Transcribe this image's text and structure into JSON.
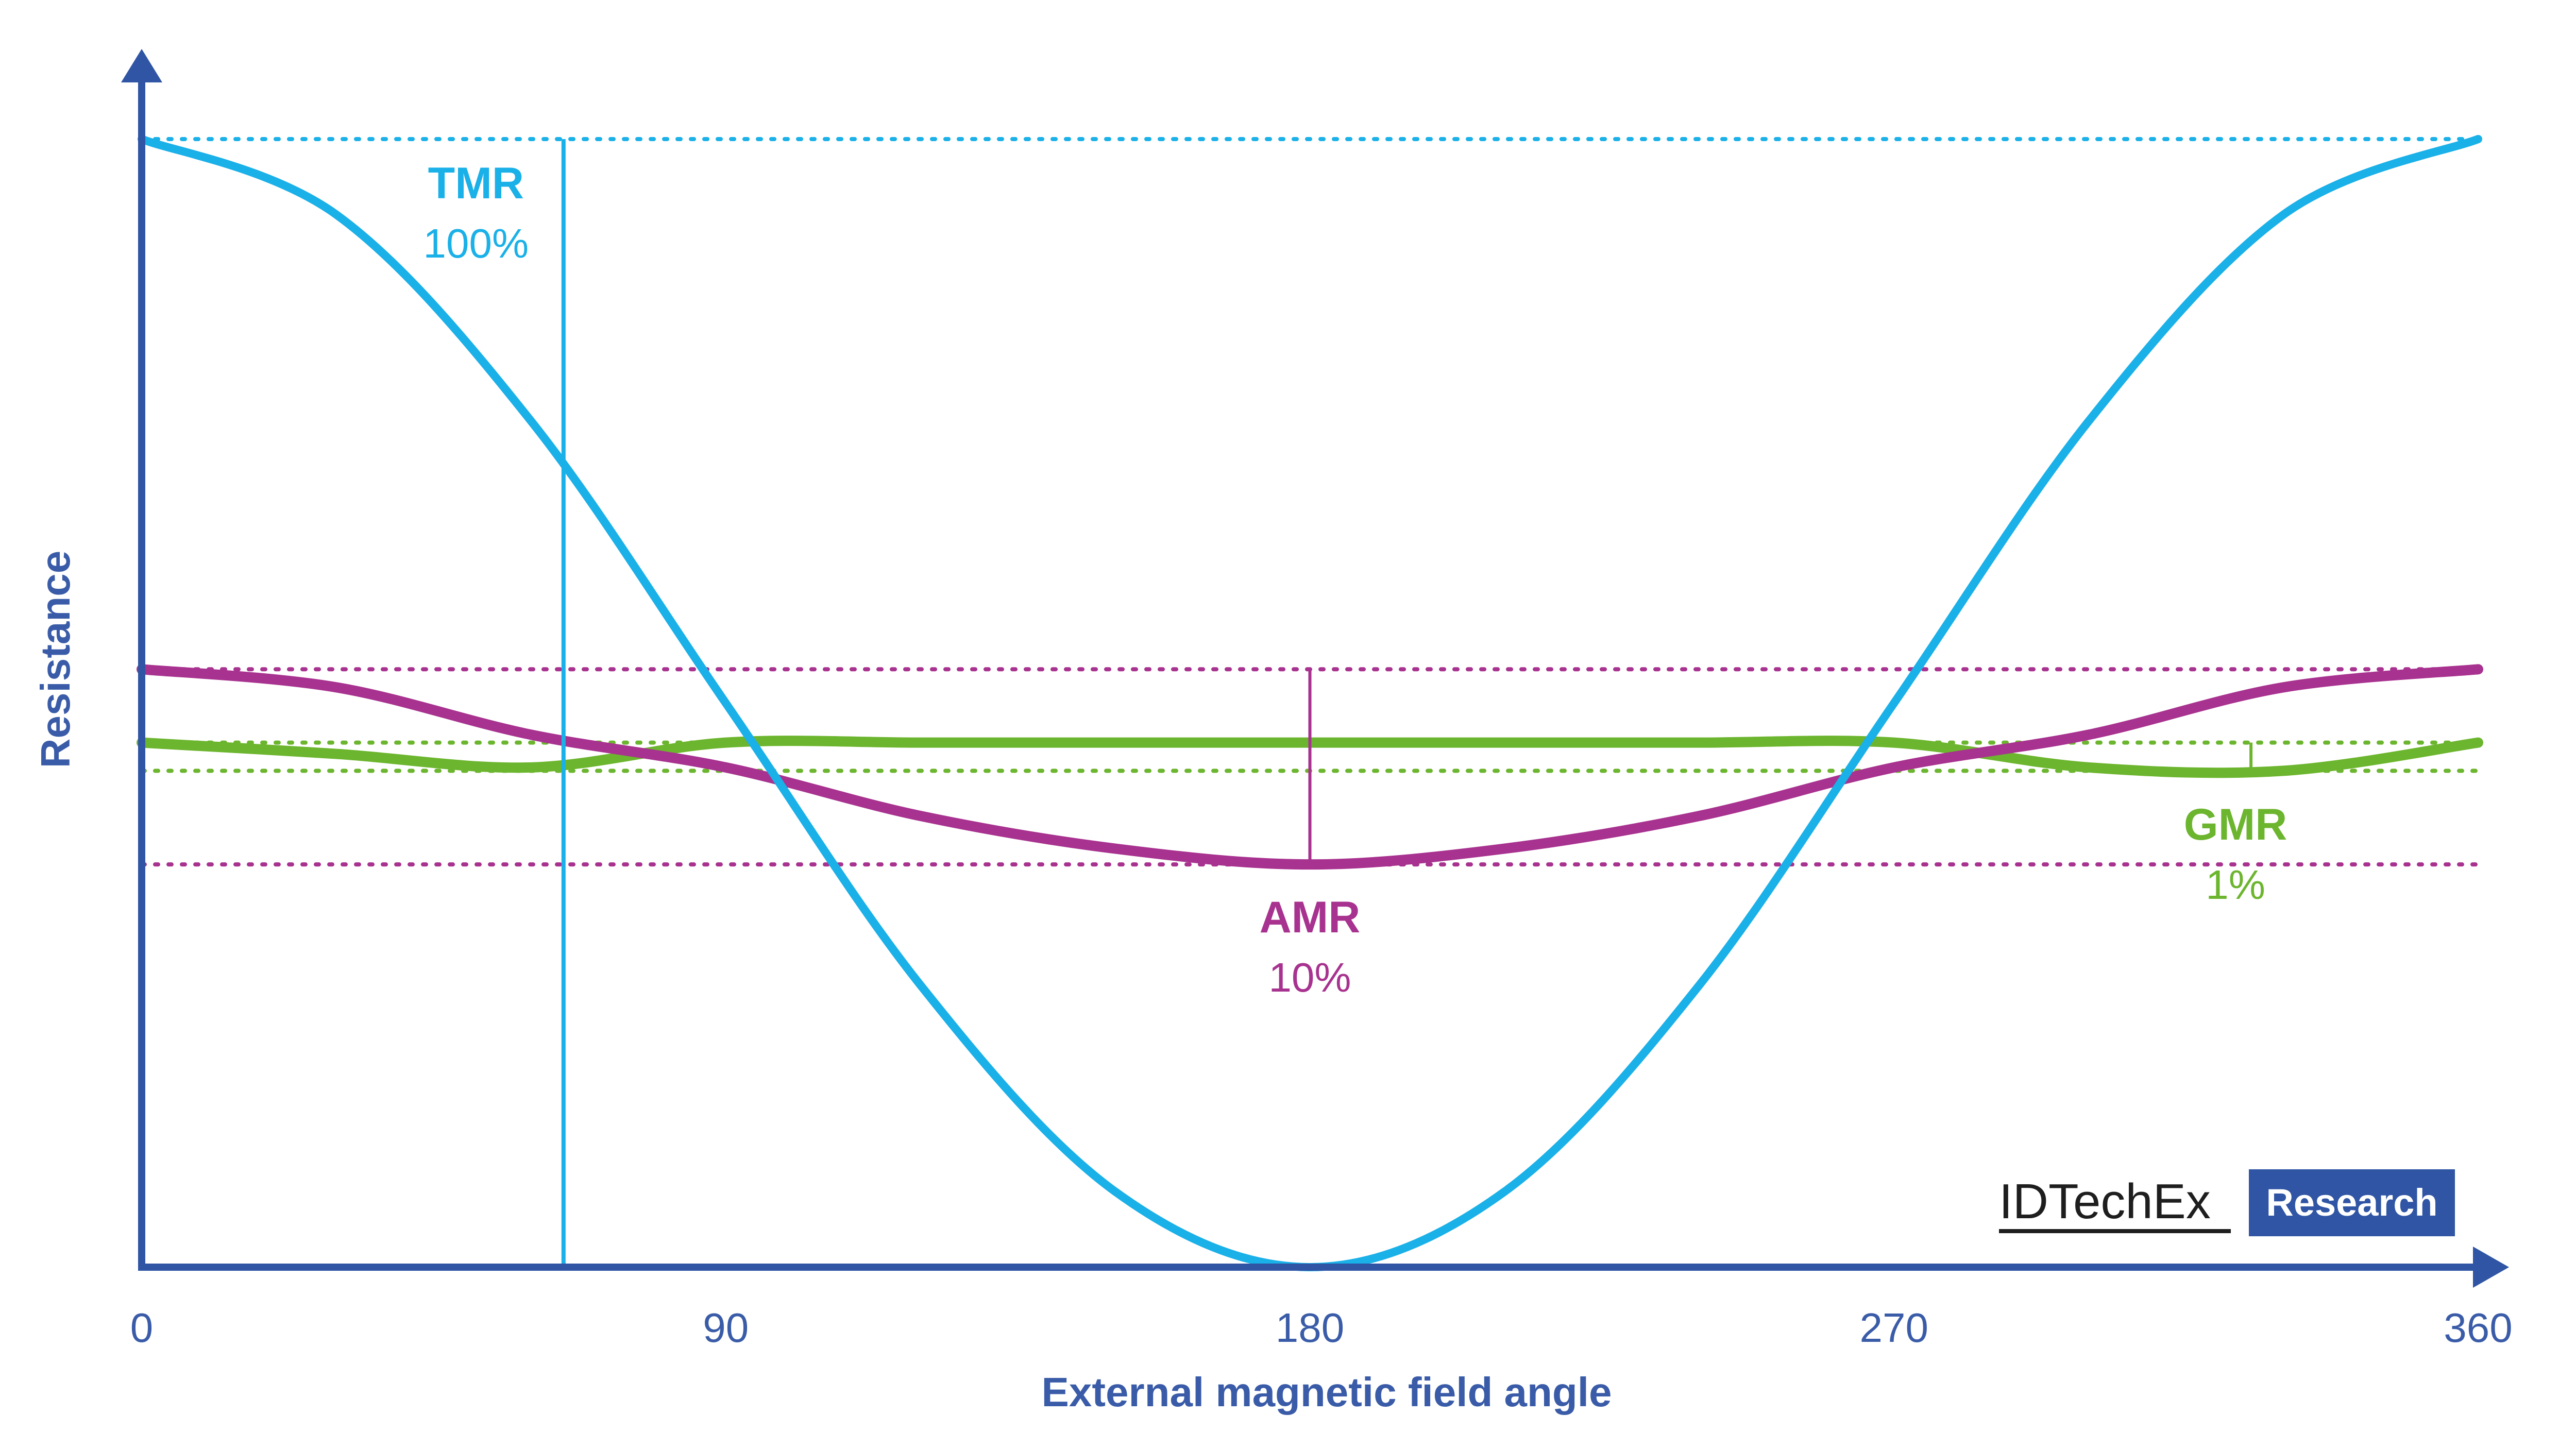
{
  "colors": {
    "axis": "#2f55a4",
    "tmr": "#1ab0e8",
    "amr": "#a8328f",
    "gmr": "#6cb52e",
    "label": "#3a5ca8"
  },
  "branding": {
    "logo_text": "IDTechEx",
    "box_text": "Research"
  },
  "chart_data": {
    "type": "line",
    "xlabel": "External magnetic field angle",
    "ylabel": "Resistance",
    "x_ticks": [
      "0",
      "90",
      "180",
      "270",
      "360"
    ],
    "xlim": [
      0,
      360
    ],
    "ylim": [
      0,
      1
    ],
    "grid": false,
    "legend": "none",
    "x": [
      0,
      30,
      60,
      90,
      120,
      150,
      180,
      210,
      240,
      270,
      300,
      330,
      360
    ],
    "series": [
      {
        "key": "tmr",
        "values": [
          1.0,
          0.933,
          0.75,
          0.5,
          0.25,
          0.067,
          0.0,
          0.067,
          0.25,
          0.5,
          0.75,
          0.933,
          1.0
        ],
        "max": 1.0,
        "min": 0.0
      },
      {
        "key": "amr",
        "values": [
          0.53,
          0.514,
          0.472,
          0.443,
          0.4,
          0.371,
          0.357,
          0.371,
          0.4,
          0.443,
          0.472,
          0.514,
          0.53
        ],
        "max": 0.53,
        "min": 0.357
      },
      {
        "key": "gmr",
        "values": [
          0.465,
          0.455,
          0.443,
          0.465,
          0.465,
          0.465,
          0.465,
          0.465,
          0.465,
          0.465,
          0.443,
          0.44,
          0.465
        ],
        "max": 0.465,
        "min": 0.44
      }
    ],
    "annotations": [
      {
        "key": "tmr",
        "name": "TMR",
        "value": "100%",
        "x": 65
      },
      {
        "key": "amr",
        "name": "AMR",
        "value": "10%",
        "x": 180
      },
      {
        "key": "gmr",
        "name": "GMR",
        "value": "1%",
        "x": 325
      }
    ]
  }
}
